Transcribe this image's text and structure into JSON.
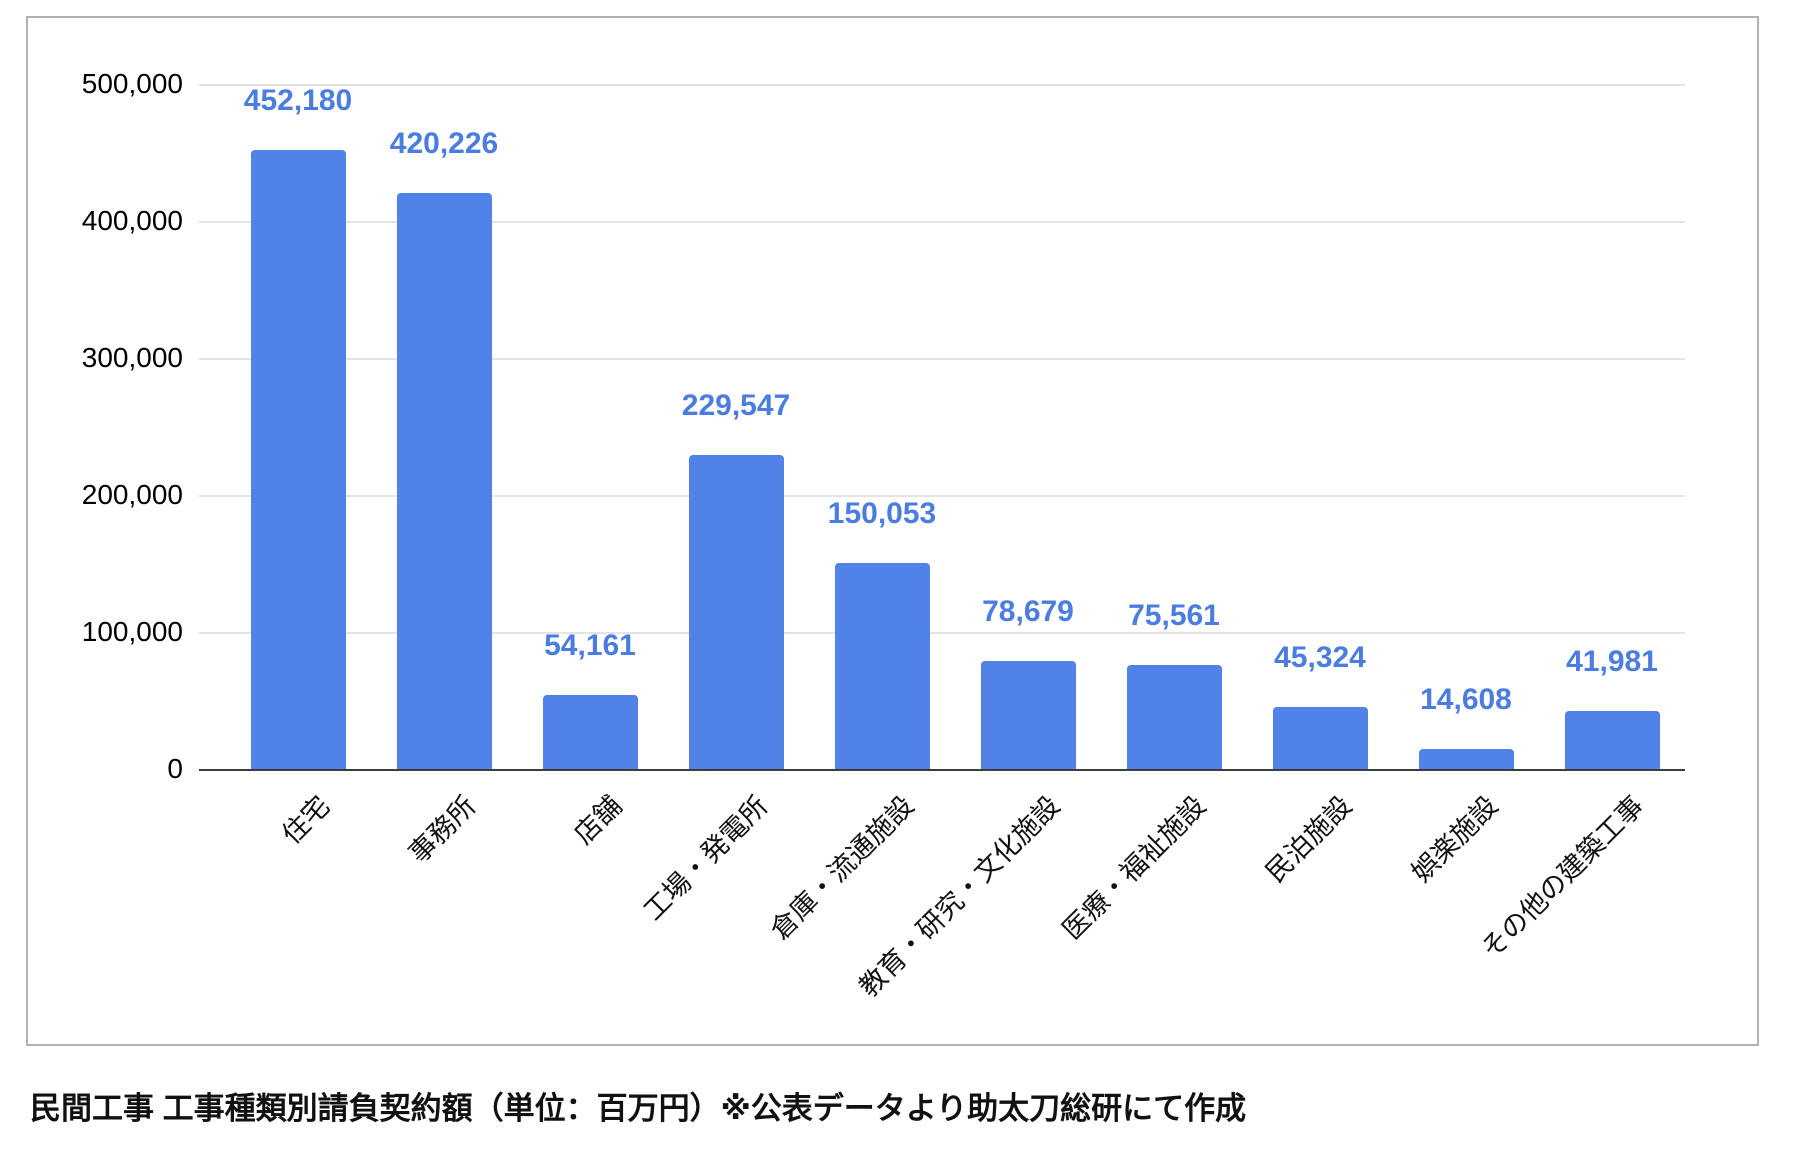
{
  "chart_data": {
    "type": "bar",
    "title": "",
    "xlabel": "",
    "ylabel": "",
    "categories": [
      "住宅",
      "事務所",
      "店舗",
      "工場・発電所",
      "倉庫・流通施設",
      "教育・研究・文化施設",
      "医療・福祉施設",
      "民泊施設",
      "娯楽施設",
      "その他の建築工事"
    ],
    "values": [
      452180,
      420226,
      54161,
      229547,
      150053,
      78679,
      75561,
      45324,
      14608,
      41981
    ],
    "value_labels": [
      "452,180",
      "420,226",
      "54,161",
      "229,547",
      "150,053",
      "78,679",
      "75,561",
      "45,324",
      "14,608",
      "41,981"
    ],
    "y_ticks": [
      "0",
      "100,000",
      "200,000",
      "300,000",
      "400,000",
      "500,000"
    ],
    "ylim": [
      0,
      500000
    ],
    "y_tick_step": 100000,
    "grid": true,
    "legend": "none",
    "bar_color": "#5182e8",
    "annotation_color": "#4a7ce2"
  },
  "caption": "民間工事 工事種類別請負契約額（単位：百万円）※公表データより助太刀総研にて作成"
}
